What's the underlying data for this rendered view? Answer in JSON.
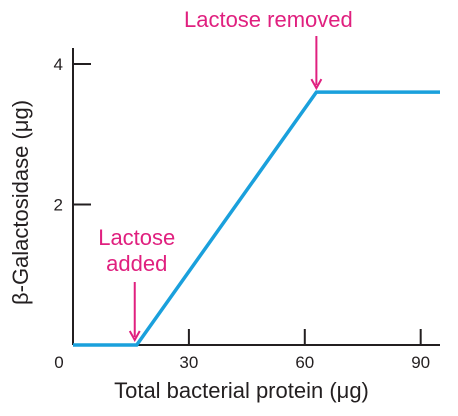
{
  "chart_data": {
    "type": "line",
    "title": "",
    "xlabel": "Total bacterial protein (μg)",
    "ylabel": "β-Galactosidase (μg)",
    "xlim": [
      0,
      95
    ],
    "ylim": [
      0,
      4.2
    ],
    "x_ticks": [
      0,
      30,
      60,
      90
    ],
    "x_tick_labels": [
      "0",
      "30",
      "60",
      "90"
    ],
    "y_ticks": [
      2,
      4
    ],
    "y_tick_labels": [
      "2",
      "4"
    ],
    "grid": false,
    "series": [
      {
        "x": [
          0,
          16.5,
          63,
          95
        ],
        "y": [
          0,
          0,
          3.6,
          3.6
        ],
        "color": "#1aa0dc"
      }
    ],
    "annotations": [
      {
        "text": "Lactose\nadded",
        "x": 16.5,
        "y": 0,
        "color": "#e0207f"
      },
      {
        "text": "Lactose removed",
        "x": 63,
        "y": 3.6,
        "color": "#e0207f"
      }
    ]
  }
}
